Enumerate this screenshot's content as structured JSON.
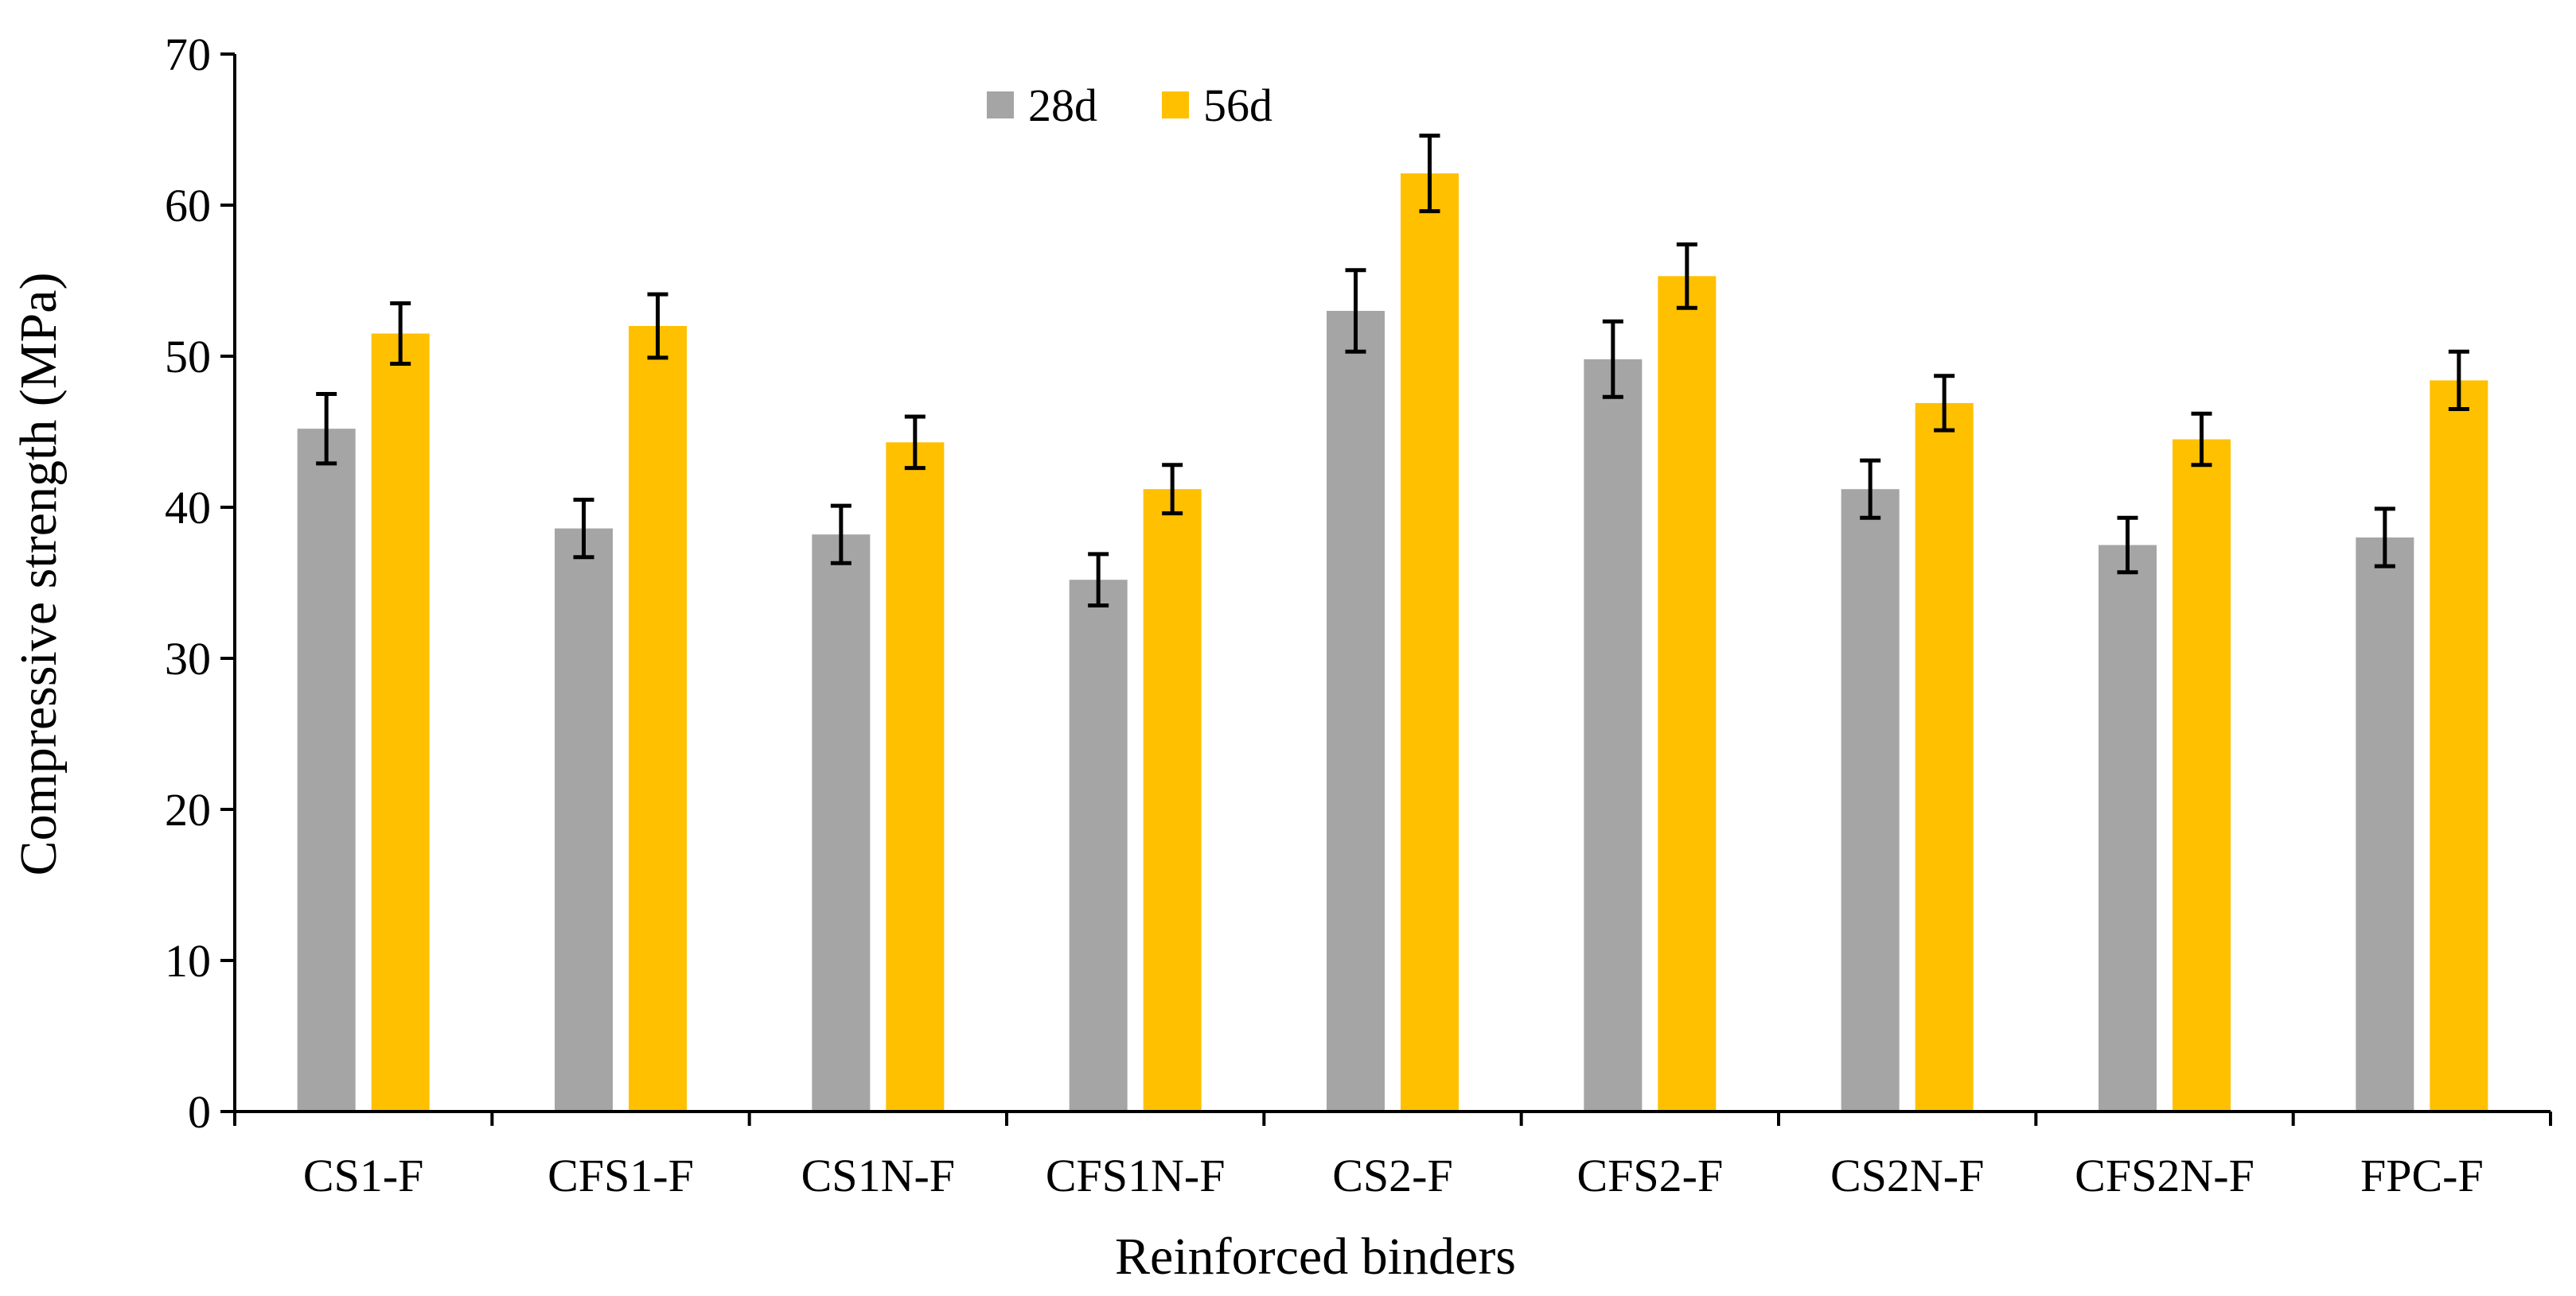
{
  "chart_data": {
    "type": "bar",
    "title": "",
    "xlabel": "Reinforced binders",
    "ylabel": "Compressive strength (MPa)",
    "ylim": [
      0,
      70
    ],
    "yticks": [
      "0",
      "10",
      "20",
      "30",
      "40",
      "50",
      "60",
      "70"
    ],
    "grid": false,
    "legend_position": "top-center",
    "categories": [
      "CS1-F",
      "CFS1-F",
      "CS1N-F",
      "CFS1N-F",
      "CS2-F",
      "CFS2-F",
      "CS2N-F",
      "CFS2N-F",
      "FPC-F"
    ],
    "series": [
      {
        "name": "28d",
        "color": "#a5a5a5",
        "values": [
          45.2,
          38.6,
          38.2,
          35.2,
          53.0,
          49.8,
          41.2,
          37.5,
          38.0
        ],
        "errors": [
          2.3,
          1.9,
          1.9,
          1.7,
          2.7,
          2.5,
          1.9,
          1.8,
          1.9
        ]
      },
      {
        "name": "56d",
        "color": "#ffc000",
        "values": [
          51.5,
          52.0,
          44.3,
          41.2,
          62.1,
          55.3,
          46.9,
          44.5,
          48.4
        ],
        "errors": [
          2.0,
          2.1,
          1.7,
          1.6,
          2.5,
          2.1,
          1.8,
          1.7,
          1.9
        ]
      }
    ]
  }
}
